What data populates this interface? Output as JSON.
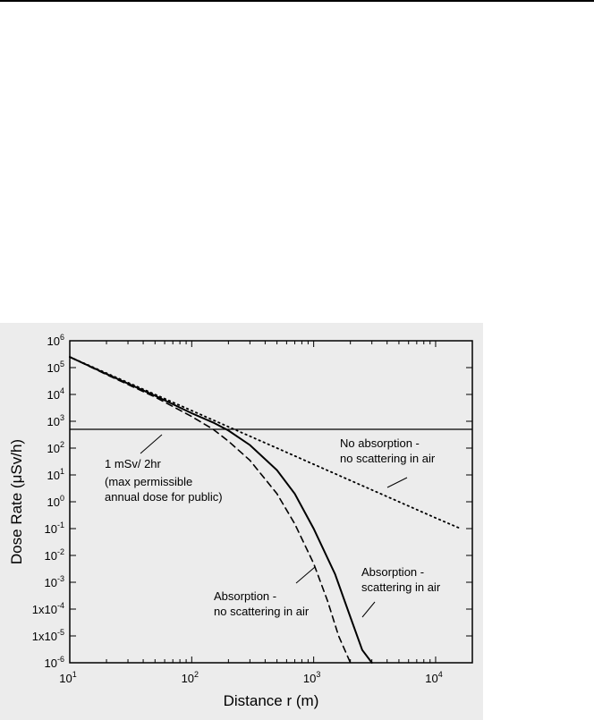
{
  "chart_data": {
    "type": "line",
    "xlabel": "Distance r (m)",
    "ylabel": "Dose Rate (μSv/h)",
    "xscale": "log",
    "yscale": "log",
    "xlim": [
      10,
      20000
    ],
    "ylim": [
      1e-06,
      1000000.0
    ],
    "grid": false,
    "x_tick_labels": [
      {
        "value": 10,
        "base": "10",
        "exp": "1"
      },
      {
        "value": 100,
        "base": "10",
        "exp": "2"
      },
      {
        "value": 1000,
        "base": "10",
        "exp": "3"
      },
      {
        "value": 10000,
        "base": "10",
        "exp": "4"
      }
    ],
    "y_tick_labels": [
      {
        "value": 1000000.0,
        "base": "10",
        "exp": "6"
      },
      {
        "value": 100000.0,
        "base": "10",
        "exp": "5"
      },
      {
        "value": 10000.0,
        "base": "10",
        "exp": "4"
      },
      {
        "value": 1000.0,
        "base": "10",
        "exp": "3"
      },
      {
        "value": 100.0,
        "base": "10",
        "exp": "2"
      },
      {
        "value": 10.0,
        "base": "10",
        "exp": "1"
      },
      {
        "value": 1,
        "base": "10",
        "exp": "0"
      },
      {
        "value": 0.1,
        "base": "10",
        "exp": "-1"
      },
      {
        "value": 0.01,
        "base": "10",
        "exp": "-2"
      },
      {
        "value": 0.001,
        "base": "10",
        "exp": "-3"
      },
      {
        "value": 0.0001,
        "base": "1x10",
        "exp": "-4"
      },
      {
        "value": 1e-05,
        "base": "1x10",
        "exp": "-5"
      },
      {
        "value": 1e-06,
        "base": "10",
        "exp": "-6"
      }
    ],
    "series": [
      {
        "key": "no-absorption",
        "style": "dotted",
        "points": [
          [
            10,
            250000
          ],
          [
            20,
            62000
          ],
          [
            50,
            10000
          ],
          [
            100,
            2500
          ],
          [
            200,
            620
          ],
          [
            500,
            100
          ],
          [
            1000,
            25
          ],
          [
            2000,
            6.2
          ],
          [
            5000,
            1
          ],
          [
            10000,
            0.25
          ],
          [
            16000,
            0.1
          ]
        ]
      },
      {
        "key": "absorption-scattering",
        "style": "solid",
        "points": [
          [
            10,
            250000
          ],
          [
            20,
            58000
          ],
          [
            50,
            9000
          ],
          [
            100,
            2000
          ],
          [
            150,
            900
          ],
          [
            200,
            450
          ],
          [
            300,
            130
          ],
          [
            500,
            15
          ],
          [
            700,
            2
          ],
          [
            1000,
            0.1
          ],
          [
            1500,
            0.002
          ],
          [
            2000,
            5e-05
          ],
          [
            2500,
            3e-06
          ],
          [
            3000,
            1e-06
          ]
        ]
      },
      {
        "key": "absorption-no-scattering",
        "style": "dashed",
        "points": [
          [
            10,
            250000
          ],
          [
            20,
            55000
          ],
          [
            50,
            8000
          ],
          [
            100,
            1500
          ],
          [
            150,
            500
          ],
          [
            200,
            180
          ],
          [
            300,
            35
          ],
          [
            500,
            2
          ],
          [
            700,
            0.15
          ],
          [
            1000,
            0.005
          ],
          [
            1300,
            0.0002
          ],
          [
            1600,
            1e-05
          ],
          [
            2000,
            1e-06
          ]
        ]
      }
    ],
    "reference_line": {
      "y": 500
    },
    "annotations": {
      "no_absorption": [
        "No absorption -",
        "no scattering in air"
      ],
      "absorption_scattering": [
        "Absorption -",
        "scattering in air"
      ],
      "absorption_no_scattering": [
        "Absorption -",
        "no scattering in air"
      ],
      "limit": [
        "1 mSv/ 2hr",
        "(max permissible",
        "annual dose for public)"
      ]
    }
  }
}
